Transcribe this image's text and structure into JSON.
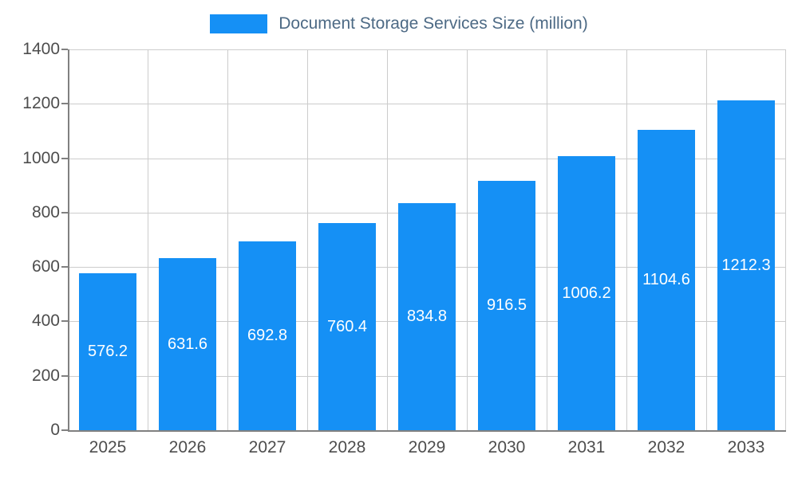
{
  "legend": {
    "label": "Document Storage Services Size (million)"
  },
  "colors": {
    "bar": "#1590f5",
    "grid": "#cccccc",
    "axis_line": "#808080",
    "axis_text": "#4d4d4d",
    "value_text": "#ffffff",
    "legend_text": "#4d6a85"
  },
  "chart_data": {
    "type": "bar",
    "title": "Document Storage Services Size (million)",
    "categories": [
      "2025",
      "2026",
      "2027",
      "2028",
      "2029",
      "2030",
      "2031",
      "2032",
      "2033"
    ],
    "values": [
      576.2,
      631.6,
      692.8,
      760.4,
      834.8,
      916.5,
      1006.2,
      1104.6,
      1212.3
    ],
    "xlabel": "",
    "ylabel": "",
    "ylim": [
      0,
      1400
    ],
    "yticks": [
      0,
      200,
      400,
      600,
      800,
      1000,
      1200,
      1400
    ],
    "grid": true,
    "legend_position": "top",
    "value_labels": "inside-center"
  }
}
